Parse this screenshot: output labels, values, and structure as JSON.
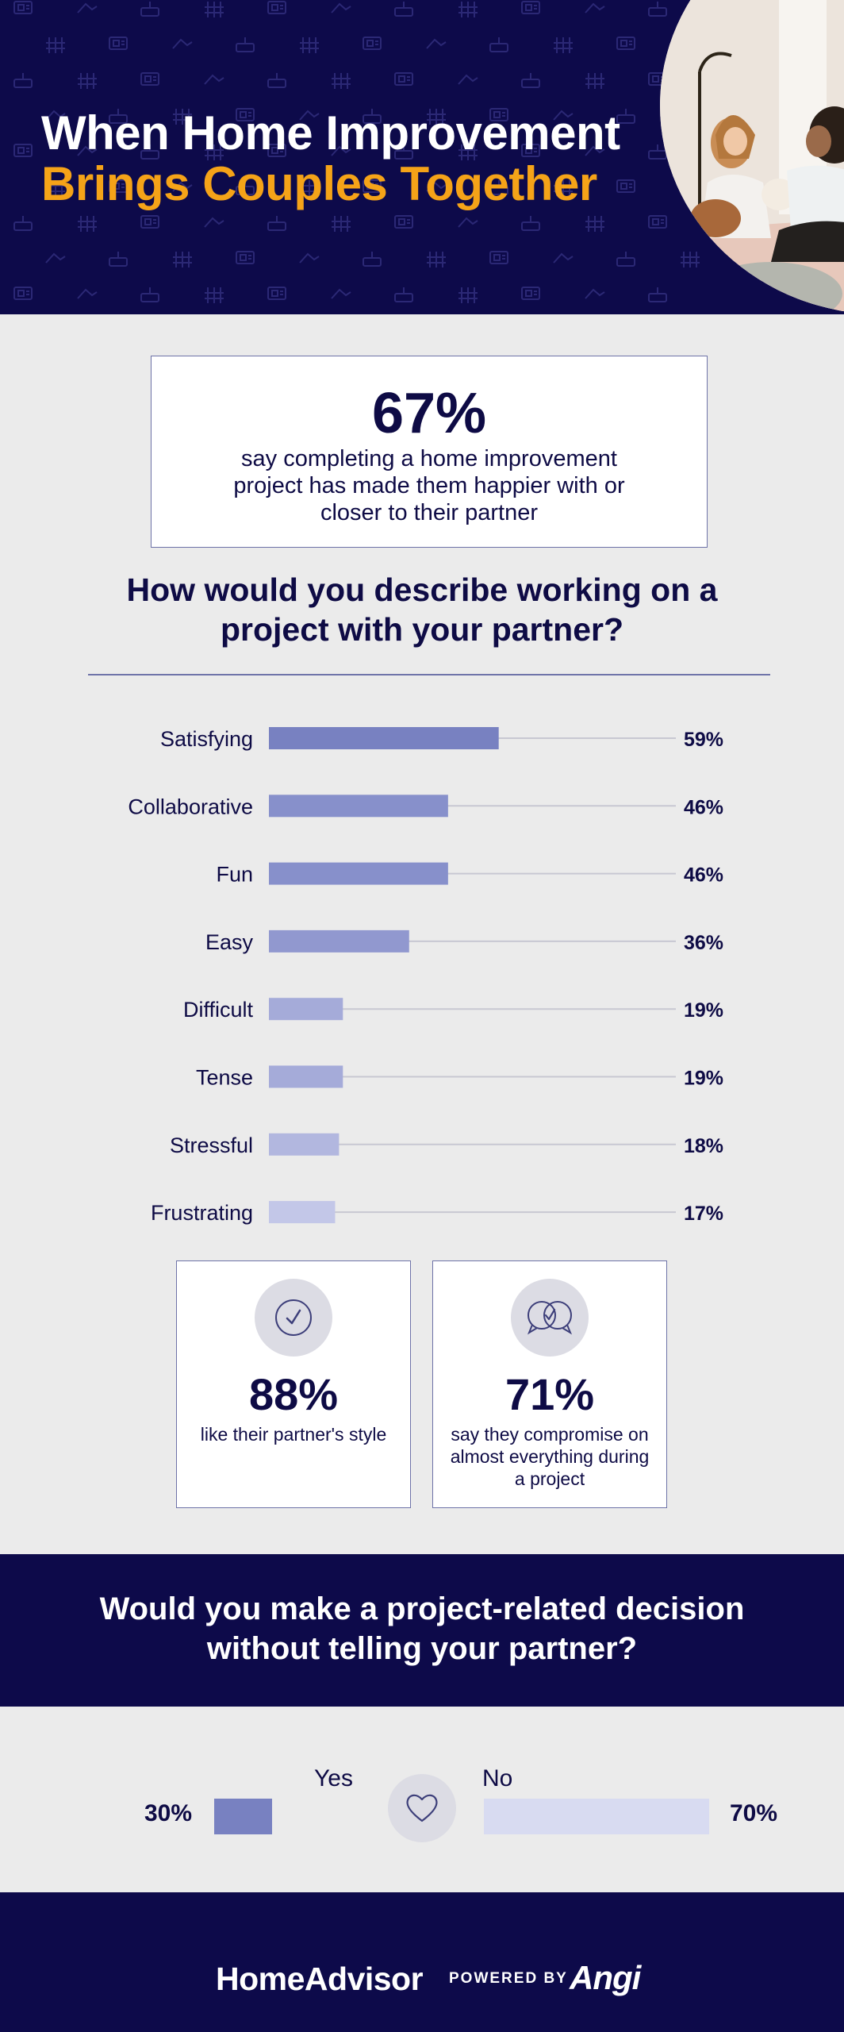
{
  "header": {
    "title_line1": "When Home Improvement",
    "title_line2": "Brings Couples Together",
    "colors": {
      "background": "#0d0a4a",
      "title_white": "#ffffff",
      "title_accent": "#f5a318"
    }
  },
  "top_stat": {
    "value": "67%",
    "description": "say completing a home improvement project has made them happier with or closer to their partner"
  },
  "question1": "How would you describe working on a project with your partner?",
  "chart_data": {
    "type": "bar",
    "orientation": "horizontal",
    "title": "How would you describe working on a project with your partner?",
    "categories": [
      "Satisfying",
      "Collaborative",
      "Fun",
      "Easy",
      "Difficult",
      "Tense",
      "Stressful",
      "Frustrating"
    ],
    "values": [
      59,
      46,
      46,
      36,
      19,
      19,
      18,
      17
    ],
    "value_labels": [
      "59%",
      "46%",
      "46%",
      "36%",
      "19%",
      "19%",
      "18%",
      "17%"
    ],
    "xlim": [
      0,
      100
    ],
    "grid": false,
    "bar_colors": [
      "#7881c1",
      "#8790cb",
      "#8790cb",
      "#9198cf",
      "#a5abd9",
      "#a5abd9",
      "#b2b7df",
      "#c3c7e8"
    ]
  },
  "stat_cards": [
    {
      "value": "88%",
      "description": "like their partner's style",
      "icon": "check-circle-icon"
    },
    {
      "value": "71%",
      "description": "say they compromise on almost everything during a project",
      "icon": "chat-bubbles-icon"
    }
  ],
  "question2": "Would you make a project-related decision without telling your partner?",
  "yes_no": {
    "yes_label": "Yes",
    "no_label": "No",
    "yes_pct": "30%",
    "no_pct": "70%",
    "yes_value": 30,
    "no_value": 70,
    "icon": "heart-icon",
    "colors": {
      "yes": "#7881c1",
      "no": "#d8dbf1"
    }
  },
  "footer": {
    "brand": "HomeAdvisor",
    "powered_by": "POWERED BY",
    "partner": "Angi"
  }
}
